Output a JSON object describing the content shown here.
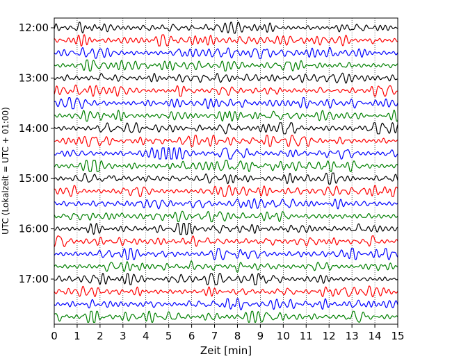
{
  "chart_data": {
    "type": "line",
    "title": "",
    "xlabel": "Zeit  [min]",
    "ylabel": "UTC (Lokalzeit = UTC + 01:00)",
    "xlim": [
      0,
      15
    ],
    "x_ticks": [
      "0",
      "1",
      "2",
      "3",
      "4",
      "5",
      "6",
      "7",
      "8",
      "9",
      "10",
      "11",
      "12",
      "13",
      "14",
      "15"
    ],
    "y_ticks": [
      "12:00",
      "13:00",
      "14:00",
      "15:00",
      "16:00",
      "17:00"
    ],
    "row_start": "12:00",
    "row_end": "17:45",
    "row_interval_minutes": 15,
    "row_colors": [
      "#000000",
      "#ff0000",
      "#0000ff",
      "#008000"
    ],
    "grid": "vertical-dotted",
    "legend": "none"
  }
}
